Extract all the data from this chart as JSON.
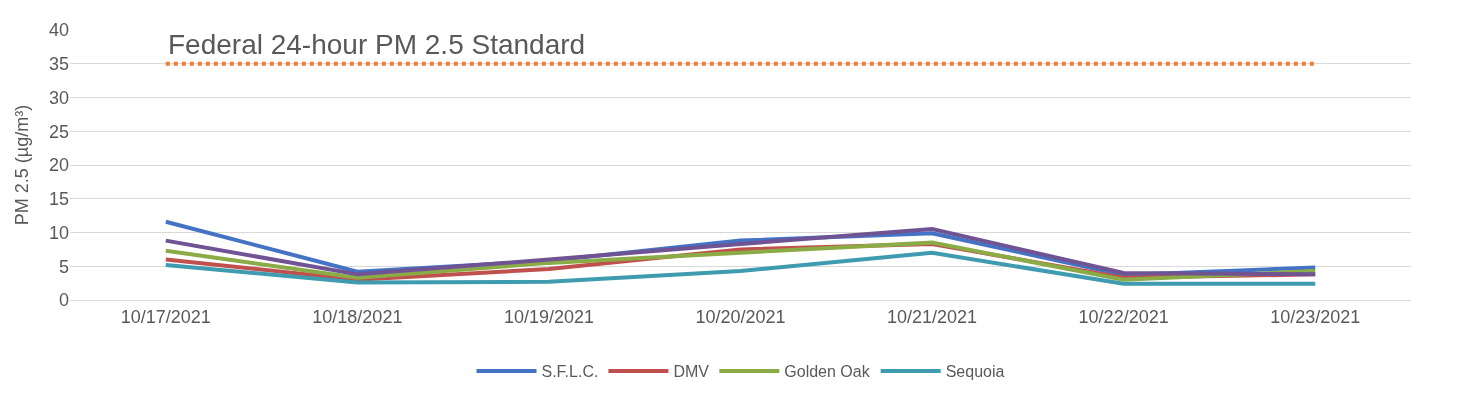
{
  "chart_data": {
    "type": "line",
    "ylabel": "PM 2.5 (µg/m³)",
    "categories": [
      "10/17/2021",
      "10/18/2021",
      "10/19/2021",
      "10/20/2021",
      "10/21/2021",
      "10/22/2021",
      "10/23/2021"
    ],
    "series": [
      {
        "name": "S.F.L.C.",
        "color": "#4472c4",
        "values": [
          11.6,
          4.2,
          5.8,
          8.8,
          9.9,
          3.7,
          4.8
        ]
      },
      {
        "name": "DMV",
        "color": "#c0504d",
        "values": [
          6.0,
          3.0,
          4.6,
          7.5,
          8.3,
          3.3,
          3.8
        ]
      },
      {
        "name": "Golden Oak",
        "color": "#8aab45",
        "values": [
          7.3,
          3.3,
          5.5,
          7.0,
          8.5,
          3.0,
          4.3
        ]
      },
      {
        "color": "#6f5393",
        "values": [
          8.8,
          3.8,
          6.0,
          8.3,
          10.5,
          4.0,
          3.8
        ]
      },
      {
        "name": "Sequoia",
        "color": "#3f9bb0",
        "values": [
          5.2,
          2.6,
          2.7,
          4.3,
          7.0,
          2.4,
          2.4
        ]
      }
    ],
    "ref_lines": [
      {
        "axis": "y",
        "value": 35,
        "label": "Federal 24-hour PM 2.5 Standard",
        "color": "#ed7d31",
        "line_style": "dotted"
      }
    ],
    "ylim": [
      0,
      40
    ],
    "yticks": [
      0,
      5,
      10,
      15,
      20,
      25,
      30,
      35,
      40
    ],
    "grid": "y",
    "legend": "bottom",
    "marker": "none",
    "line_style": "solid"
  }
}
